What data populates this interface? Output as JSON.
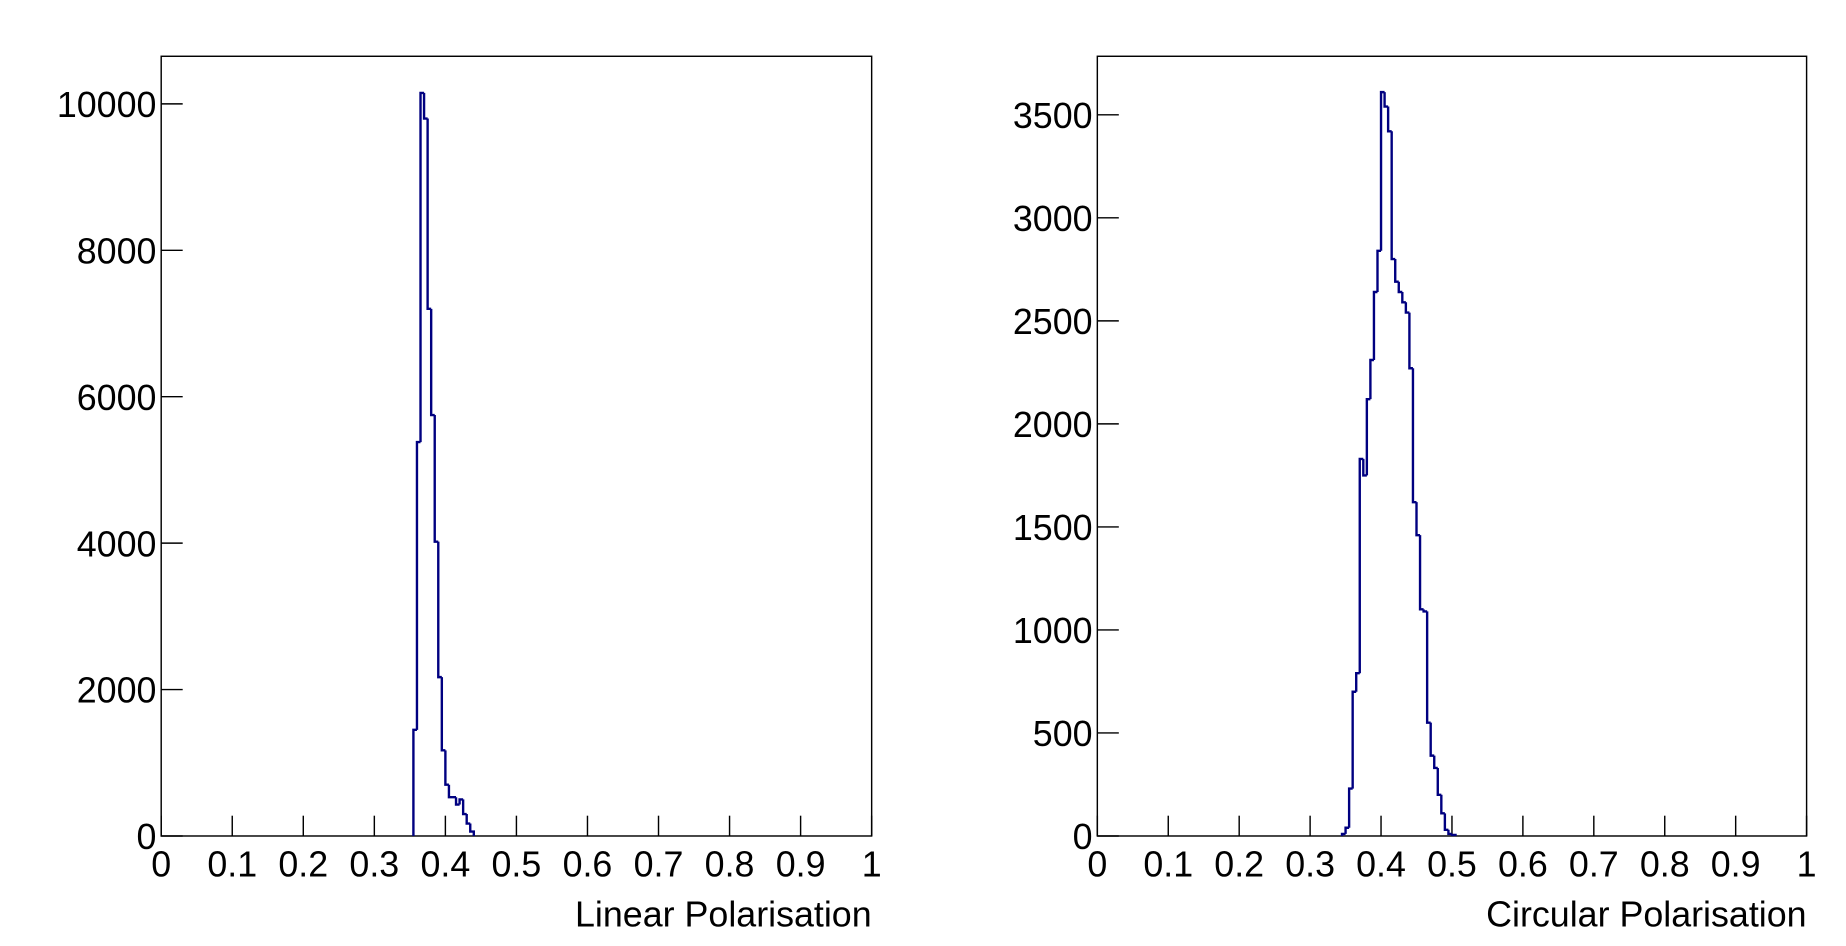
{
  "chart_data": [
    {
      "type": "histogram",
      "x_label": "Linear Polarisation",
      "color": "#000080",
      "bins": [
        0.355,
        0.36,
        0.365,
        0.37,
        0.375,
        0.38,
        0.385,
        0.39,
        0.395,
        0.4,
        0.405,
        0.41,
        0.415,
        0.42,
        0.425,
        0.43,
        0.435,
        0.44
      ],
      "values": [
        1450,
        5380,
        10150,
        9800,
        7200,
        5750,
        4020,
        2170,
        1170,
        700,
        530,
        530,
        430,
        500,
        300,
        170,
        60
      ],
      "xlim": [
        0,
        1
      ],
      "xticks": [
        0,
        0.1,
        0.2,
        0.3,
        0.4,
        0.5,
        0.6,
        0.7,
        0.8,
        0.9,
        1
      ],
      "ylim": [
        0,
        10650
      ],
      "yticks": [
        0,
        2000,
        4000,
        6000,
        8000,
        10000
      ]
    },
    {
      "type": "histogram",
      "x_label": "Circular Polarisation",
      "color": "#000080",
      "bins": [
        0.345,
        0.35,
        0.355,
        0.36,
        0.365,
        0.37,
        0.375,
        0.38,
        0.385,
        0.39,
        0.395,
        0.4,
        0.405,
        0.41,
        0.415,
        0.42,
        0.425,
        0.43,
        0.435,
        0.44,
        0.445,
        0.45,
        0.455,
        0.46,
        0.465,
        0.47,
        0.475,
        0.48,
        0.485,
        0.49,
        0.495,
        0.5,
        0.505
      ],
      "values": [
        10,
        40,
        230,
        700,
        790,
        1830,
        1750,
        2120,
        2310,
        2640,
        2840,
        3610,
        3540,
        3420,
        2800,
        2690,
        2640,
        2590,
        2540,
        2270,
        1620,
        1460,
        1100,
        1090,
        550,
        390,
        330,
        200,
        110,
        30,
        10,
        5
      ],
      "xlim": [
        0,
        1
      ],
      "xticks": [
        0,
        0.1,
        0.2,
        0.3,
        0.4,
        0.5,
        0.6,
        0.7,
        0.8,
        0.9,
        1
      ],
      "ylim": [
        0,
        3784
      ],
      "yticks": [
        0,
        500,
        1000,
        1500,
        2000,
        2500,
        3000,
        3500
      ]
    }
  ]
}
